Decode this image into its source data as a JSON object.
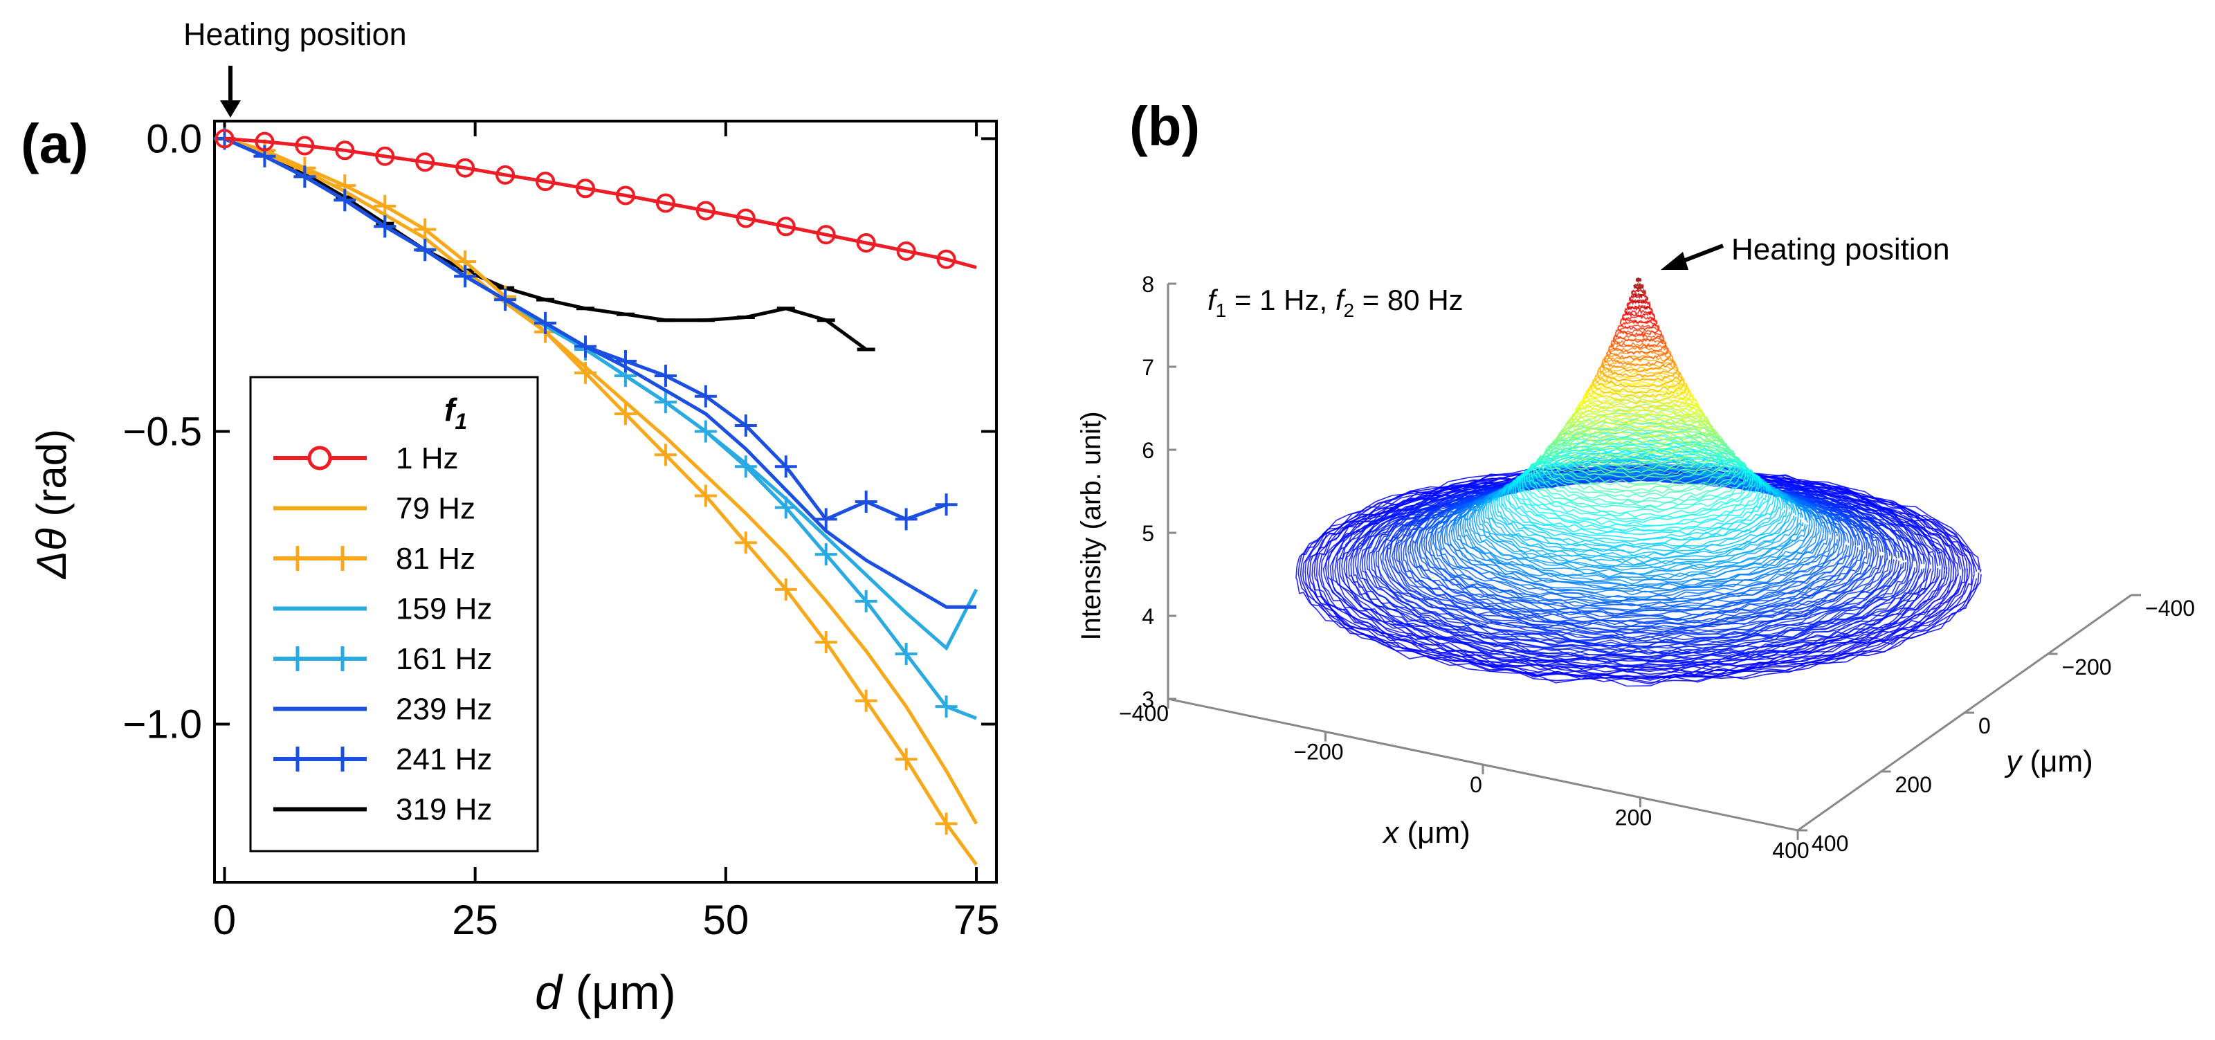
{
  "panel_a": {
    "label": "(a)",
    "heating_label": "Heating position",
    "ylabel_symbol": "Δθ",
    "ylabel_unit": " (rad)",
    "xlabel_symbol": "d",
    "xlabel_unit": " (μm)",
    "legend_title": "f",
    "legend_title_sub": "1"
  },
  "panel_b": {
    "label": "(b)",
    "heating_label": "Heating position",
    "ylabel": "Intensity (arb. unit)",
    "xlabel_symbol": "x",
    "xlabel_unit": " (μm)",
    "zlabel_symbol": "y",
    "zlabel_unit": " (μm)",
    "annot": {
      "f1": "f",
      "sub1": "1",
      "eq1": " = 1 Hz, ",
      "f2": "f",
      "sub2": "2",
      "eq2": " = 80 Hz"
    }
  },
  "chart_data": [
    {
      "type": "line",
      "title": "",
      "xlabel": "d (μm)",
      "ylabel": "Δθ (rad)",
      "xlim": [
        -1,
        77
      ],
      "ylim": [
        -1.27,
        0.03
      ],
      "xticks": [
        0,
        25,
        50,
        75
      ],
      "xtick_labels": [
        "0",
        "25",
        "50",
        "75"
      ],
      "yticks": [
        0,
        -0.5,
        -1
      ],
      "ytick_labels": [
        "0.0",
        "−0.5",
        "−1.0"
      ],
      "legend": "lower-left",
      "x": [
        0,
        4,
        8,
        12,
        16,
        20,
        24,
        28,
        32,
        36,
        40,
        44,
        48,
        52,
        56,
        60,
        64,
        68,
        72,
        75
      ],
      "series": [
        {
          "name": "1 Hz",
          "color": "#ee1c25",
          "marker": "circle",
          "values": [
            0,
            -0.005,
            -0.012,
            -0.02,
            -0.03,
            -0.04,
            -0.05,
            -0.062,
            -0.073,
            -0.085,
            -0.097,
            -0.11,
            -0.123,
            -0.136,
            -0.15,
            -0.164,
            -0.178,
            -0.192,
            -0.206,
            -0.22
          ]
        },
        {
          "name": "79 Hz",
          "color": "#f7a81b",
          "marker": "none",
          "values": [
            0,
            -0.025,
            -0.055,
            -0.09,
            -0.13,
            -0.17,
            -0.225,
            -0.28,
            -0.33,
            -0.39,
            -0.45,
            -0.51,
            -0.575,
            -0.64,
            -0.71,
            -0.79,
            -0.875,
            -0.97,
            -1.08,
            -1.17
          ]
        },
        {
          "name": "81 Hz",
          "color": "#f7a81b",
          "marker": "plus",
          "values": [
            0,
            -0.02,
            -0.05,
            -0.08,
            -0.115,
            -0.155,
            -0.21,
            -0.27,
            -0.33,
            -0.4,
            -0.47,
            -0.54,
            -0.61,
            -0.69,
            -0.77,
            -0.86,
            -0.96,
            -1.06,
            -1.17,
            -1.24
          ]
        },
        {
          "name": "159 Hz",
          "color": "#29aae2",
          "marker": "none",
          "values": [
            0,
            -0.03,
            -0.065,
            -0.105,
            -0.15,
            -0.19,
            -0.235,
            -0.275,
            -0.32,
            -0.36,
            -0.405,
            -0.45,
            -0.5,
            -0.555,
            -0.615,
            -0.68,
            -0.745,
            -0.81,
            -0.87,
            -0.77
          ]
        },
        {
          "name": "161 Hz",
          "color": "#29aae2",
          "marker": "plus",
          "values": [
            0,
            -0.03,
            -0.065,
            -0.105,
            -0.15,
            -0.19,
            -0.235,
            -0.275,
            -0.315,
            -0.36,
            -0.405,
            -0.45,
            -0.5,
            -0.56,
            -0.63,
            -0.71,
            -0.79,
            -0.88,
            -0.97,
            -0.99
          ]
        },
        {
          "name": "239 Hz",
          "color": "#1b4fe0",
          "marker": "none",
          "values": [
            0,
            -0.03,
            -0.065,
            -0.105,
            -0.15,
            -0.19,
            -0.235,
            -0.275,
            -0.315,
            -0.355,
            -0.39,
            -0.43,
            -0.47,
            -0.53,
            -0.6,
            -0.67,
            -0.72,
            -0.76,
            -0.8,
            -0.8
          ]
        },
        {
          "name": "241 Hz",
          "color": "#1b4fe0",
          "marker": "plus",
          "values": [
            0,
            -0.03,
            -0.065,
            -0.105,
            -0.15,
            -0.19,
            -0.235,
            -0.275,
            -0.315,
            -0.355,
            -0.38,
            -0.405,
            -0.44,
            -0.49,
            -0.56,
            -0.65,
            -0.62,
            -0.65,
            -0.625,
            null
          ]
        },
        {
          "name": "319 Hz",
          "color": "#000000",
          "marker": "dash",
          "values": [
            0,
            -0.025,
            -0.06,
            -0.1,
            -0.145,
            -0.19,
            -0.225,
            -0.255,
            -0.275,
            -0.29,
            -0.3,
            -0.31,
            -0.31,
            -0.305,
            -0.29,
            -0.31,
            -0.36,
            null,
            null,
            null
          ]
        }
      ]
    },
    {
      "type": "line",
      "title": "",
      "xlabel": "x (μm)",
      "ylabel": "Intensity (arb. unit)",
      "zlabel": "y (μm)",
      "ylim": [
        3,
        8
      ],
      "yticks": [
        "3",
        "4",
        "5",
        "6",
        "7",
        "8"
      ],
      "xticks": [
        "−400",
        "−200",
        "0",
        "200",
        "400"
      ],
      "zticks": [
        "400",
        "200",
        "0",
        "−200",
        "−400"
      ],
      "annotation": "f1 = 1 Hz, f2 = 80 Hz",
      "surface": {
        "peak_intensity": 8.1,
        "base_intensity": 4.45,
        "radius_um": 400,
        "rings": 150
      }
    }
  ]
}
